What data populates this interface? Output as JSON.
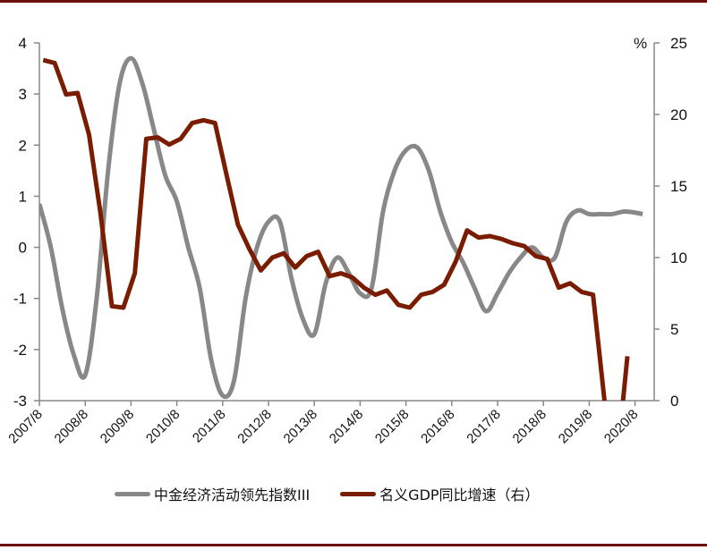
{
  "chart_data": {
    "type": "line",
    "title": "",
    "xlabel": "",
    "ylabel_left": "",
    "ylabel_right": "%",
    "x_tick_labels": [
      "2007/8",
      "2008/8",
      "2009/8",
      "2010/8",
      "2011/8",
      "2012/8",
      "2013/8",
      "2014/8",
      "2015/8",
      "2016/8",
      "2017/8",
      "2018/8",
      "2019/8",
      "2020/8"
    ],
    "left_axis": {
      "ylim": [
        -3,
        4
      ],
      "ticks": [
        4,
        3,
        2,
        1,
        0,
        -1,
        -2,
        -3
      ]
    },
    "right_axis": {
      "ylim": [
        0,
        25
      ],
      "ticks": [
        25,
        20,
        15,
        10,
        5,
        0
      ]
    },
    "grid": false,
    "legend_position": "bottom",
    "series": [
      {
        "name": "中金经济活动领先指数III",
        "axis": "left",
        "color": "#888888",
        "x": [
          "2007/8",
          "2007/11",
          "2008/2",
          "2008/5",
          "2008/8",
          "2008/11",
          "2009/2",
          "2009/5",
          "2009/8",
          "2009/11",
          "2010/2",
          "2010/5",
          "2010/8",
          "2010/11",
          "2011/2",
          "2011/5",
          "2011/8",
          "2011/11",
          "2012/2",
          "2012/5",
          "2012/8",
          "2012/11",
          "2013/2",
          "2013/5",
          "2013/8",
          "2013/11",
          "2014/2",
          "2014/5",
          "2014/8",
          "2014/11",
          "2015/2",
          "2015/5",
          "2015/8",
          "2015/11",
          "2016/2",
          "2016/5",
          "2016/8",
          "2016/11",
          "2017/2",
          "2017/5",
          "2017/8",
          "2017/11",
          "2018/2",
          "2018/5",
          "2018/8",
          "2018/11",
          "2019/2",
          "2019/5",
          "2019/8",
          "2019/11",
          "2020/2",
          "2020/5",
          "2020/8",
          "2020/10"
        ],
        "values": [
          0.85,
          0.0,
          -1.2,
          -2.1,
          -2.5,
          -1.0,
          1.5,
          3.2,
          3.7,
          3.2,
          2.3,
          1.4,
          0.9,
          0.0,
          -0.8,
          -2.2,
          -2.9,
          -2.6,
          -1.0,
          0.0,
          0.5,
          0.5,
          -0.6,
          -1.4,
          -1.7,
          -0.7,
          -0.2,
          -0.5,
          -0.9,
          -0.8,
          0.7,
          1.5,
          1.9,
          1.95,
          1.5,
          0.7,
          0.1,
          -0.3,
          -0.8,
          -1.25,
          -0.9,
          -0.5,
          -0.2,
          0.0,
          -0.2,
          -0.2,
          0.5,
          0.72,
          0.65,
          0.65,
          0.65,
          0.7,
          0.68,
          0.65
        ]
      },
      {
        "name": "名义GDP同比增速（右）",
        "axis": "right",
        "color": "#7a1c00",
        "x": [
          "2007/9",
          "2007/12",
          "2008/3",
          "2008/6",
          "2008/9",
          "2008/12",
          "2009/3",
          "2009/6",
          "2009/9",
          "2009/12",
          "2010/3",
          "2010/6",
          "2010/9",
          "2010/12",
          "2011/3",
          "2011/6",
          "2011/9",
          "2011/12",
          "2012/3",
          "2012/6",
          "2012/9",
          "2012/12",
          "2013/3",
          "2013/6",
          "2013/9",
          "2013/12",
          "2014/3",
          "2014/6",
          "2014/9",
          "2014/12",
          "2015/3",
          "2015/6",
          "2015/9",
          "2015/12",
          "2016/3",
          "2016/6",
          "2016/9",
          "2016/12",
          "2017/3",
          "2017/6",
          "2017/9",
          "2017/12",
          "2018/3",
          "2018/6",
          "2018/9",
          "2018/12",
          "2019/3",
          "2019/6",
          "2019/9",
          "2019/12",
          "2020/3",
          "2020/6"
        ],
        "values": [
          23.8,
          23.6,
          21.4,
          21.5,
          18.6,
          13.1,
          6.6,
          6.5,
          8.9,
          18.3,
          18.4,
          17.9,
          18.3,
          19.4,
          19.6,
          19.4,
          15.8,
          12.3,
          10.6,
          9.1,
          10.0,
          10.3,
          9.3,
          10.1,
          10.4,
          8.7,
          8.9,
          8.6,
          7.9,
          7.4,
          7.7,
          6.7,
          6.5,
          7.4,
          7.6,
          8.1,
          9.7,
          11.9,
          11.4,
          11.5,
          11.3,
          11.0,
          10.8,
          10.1,
          9.9,
          7.9,
          8.2,
          7.6,
          7.4,
          0.0,
          -5.0,
          3.1
        ]
      }
    ]
  },
  "legend": {
    "item1": "中金经济活动领先指数III",
    "item2": "名义GDP同比增速（右）"
  },
  "axis": {
    "right_unit": "%",
    "left_ticks": [
      "4",
      "3",
      "2",
      "1",
      "0",
      "-1",
      "-2",
      "-3"
    ],
    "right_ticks": [
      "25",
      "20",
      "15",
      "10",
      "5",
      "0"
    ],
    "x_ticks": [
      "2007/8",
      "2008/8",
      "2009/8",
      "2010/8",
      "2011/8",
      "2012/8",
      "2013/8",
      "2014/8",
      "2015/8",
      "2016/8",
      "2017/8",
      "2018/8",
      "2019/8",
      "2020/8"
    ]
  },
  "colors": {
    "index_line": "#888888",
    "gdp_line": "#7a1c00",
    "rule": "#6b0f0f"
  }
}
